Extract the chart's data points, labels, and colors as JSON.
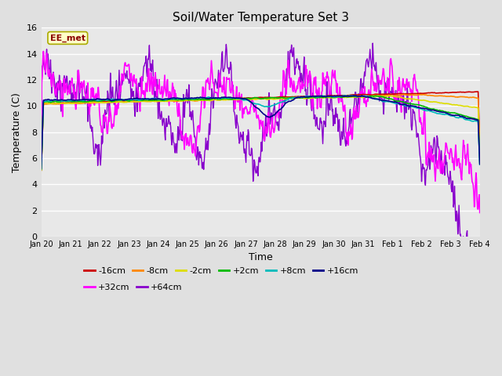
{
  "title": "Soil/Water Temperature Set 3",
  "xlabel": "Time",
  "ylabel": "Temperature (C)",
  "ylim": [
    0,
    16
  ],
  "yticks": [
    0,
    2,
    4,
    6,
    8,
    10,
    12,
    14,
    16
  ],
  "fig_bg": "#e0e0e0",
  "plot_bg": "#e8e8e8",
  "annotation_text": "EE_met",
  "annotation_color": "#8b0000",
  "annotation_bg": "#ffffc8",
  "series": {
    "-16cm": {
      "color": "#cc0000",
      "lw": 1.2,
      "zorder": 5
    },
    "-8cm": {
      "color": "#ff8800",
      "lw": 1.2,
      "zorder": 5
    },
    "-2cm": {
      "color": "#dddd00",
      "lw": 1.2,
      "zorder": 5
    },
    "+2cm": {
      "color": "#00bb00",
      "lw": 1.2,
      "zorder": 5
    },
    "+8cm": {
      "color": "#00bbbb",
      "lw": 1.2,
      "zorder": 5
    },
    "+16cm": {
      "color": "#000088",
      "lw": 1.2,
      "zorder": 5
    },
    "+32cm": {
      "color": "#ff00ff",
      "lw": 1.2,
      "zorder": 4
    },
    "+64cm": {
      "color": "#8800cc",
      "lw": 1.0,
      "zorder": 3
    }
  },
  "n_points": 800,
  "x_start": 0,
  "x_end": 15,
  "xtick_positions": [
    0,
    1,
    2,
    3,
    4,
    5,
    6,
    7,
    8,
    9,
    10,
    11,
    12,
    13,
    14,
    15
  ],
  "xtick_labels": [
    "Jan 20",
    "Jan 21",
    "Jan 22",
    "Jan 23",
    "Jan 24",
    "Jan 25",
    "Jan 26",
    "Jan 27",
    "Jan 28",
    "Jan 29",
    "Jan 30",
    "Jan 31",
    "Feb 1",
    "Feb 2",
    "Feb 3",
    "Feb 4"
  ]
}
